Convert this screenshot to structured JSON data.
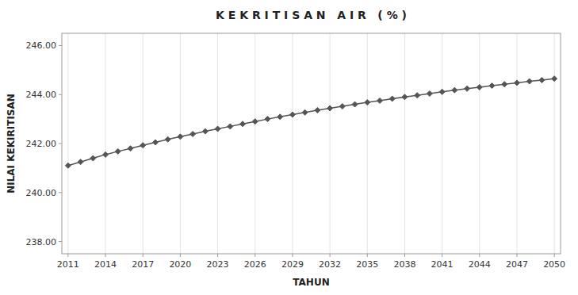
{
  "chart_data": {
    "type": "line",
    "title": "K E K R I T I S A N   A I R   ( % )",
    "x_label": "TAHUN",
    "y_label": "NILAI KEKIRITISAN",
    "x": [
      2011,
      2012,
      2013,
      2014,
      2015,
      2016,
      2017,
      2018,
      2019,
      2020,
      2021,
      2022,
      2023,
      2024,
      2025,
      2026,
      2027,
      2028,
      2029,
      2030,
      2031,
      2032,
      2033,
      2034,
      2035,
      2036,
      2037,
      2038,
      2039,
      2040,
      2041,
      2042,
      2043,
      2044,
      2045,
      2046,
      2047,
      2048,
      2049,
      2050
    ],
    "values": [
      241.1,
      241.25,
      241.4,
      241.55,
      241.68,
      241.8,
      241.93,
      242.05,
      242.17,
      242.28,
      242.39,
      242.5,
      242.6,
      242.7,
      242.8,
      242.9,
      243.0,
      243.09,
      243.18,
      243.27,
      243.36,
      243.44,
      243.52,
      243.6,
      243.68,
      243.75,
      243.83,
      243.9,
      243.97,
      244.04,
      244.11,
      244.18,
      244.24,
      244.3,
      244.36,
      244.42,
      244.48,
      244.54,
      244.59,
      244.65
    ],
    "xlim": [
      2010.5,
      2050.5
    ],
    "xticks": [
      2011,
      2014,
      2017,
      2020,
      2023,
      2026,
      2029,
      2032,
      2035,
      2038,
      2041,
      2044,
      2047,
      2050
    ],
    "ylim": [
      237.5,
      246.5
    ],
    "yticks": [
      {
        "value": 238,
        "label": "238.00"
      },
      {
        "value": 240,
        "label": "240.00"
      },
      {
        "value": 242,
        "label": "242.00"
      },
      {
        "value": 244,
        "label": "244.00"
      },
      {
        "value": 246,
        "label": "246.00"
      }
    ],
    "color": "#555555",
    "marker": "diamond",
    "grid": true
  }
}
